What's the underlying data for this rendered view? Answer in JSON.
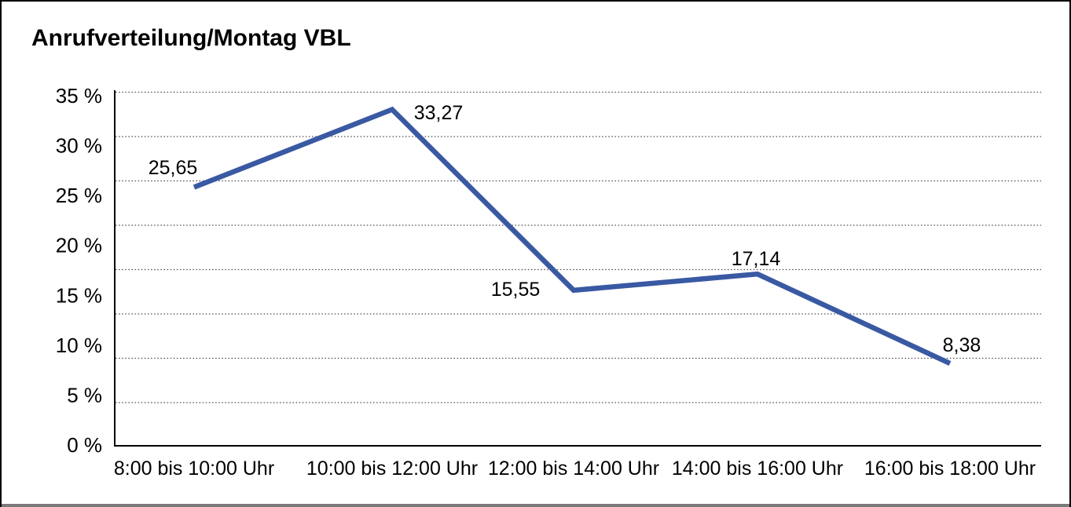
{
  "chart": {
    "title": "Anrufverteilung/Montag VBL",
    "line_color": "#3a59a3",
    "grid_color": "#4a4a4a",
    "axis_color": "#000000",
    "bottom_bar_color": "#7a7a7a"
  },
  "chart_data": {
    "type": "line",
    "title": "Anrufverteilung/Montag VBL",
    "categories": [
      "8:00 bis 10:00 Uhr",
      "10:00 bis 12:00 Uhr",
      "12:00 bis 14:00 Uhr",
      "14:00 bis 16:00 Uhr",
      "16:00 bis 18:00 Uhr"
    ],
    "values": [
      25.65,
      33.27,
      15.55,
      17.14,
      8.38
    ],
    "value_labels": [
      "25,65",
      "33,27",
      "15,55",
      "17,14",
      "8,38"
    ],
    "series": [
      {
        "name": "Anrufverteilung Montag VBL",
        "values": [
          25.65,
          33.27,
          15.55,
          17.14,
          8.38
        ]
      }
    ],
    "xlabel": "",
    "ylabel": "",
    "y_tick_labels": [
      "35 %",
      "30 %",
      "25 %",
      "20 %",
      "15 %",
      "10 %",
      "5 %",
      "0 %"
    ],
    "ylim": [
      0,
      35
    ],
    "y_tick_step": 5,
    "grid": "horizontal-dotted",
    "legend": "none"
  }
}
